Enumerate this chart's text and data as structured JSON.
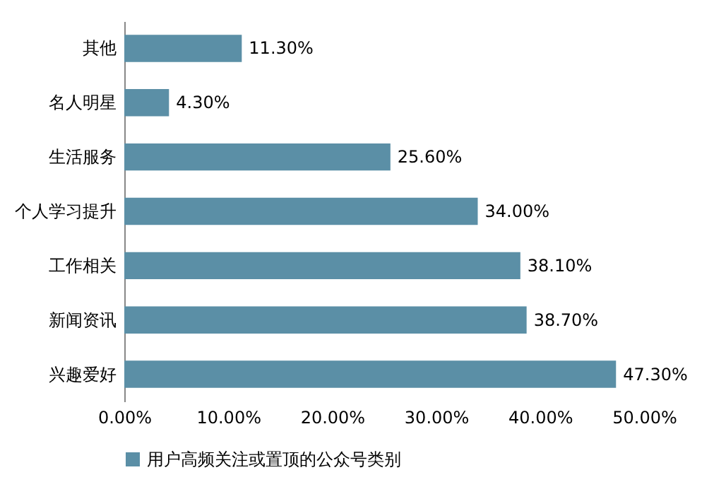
{
  "chart_data": {
    "type": "bar",
    "orientation": "horizontal",
    "categories": [
      "其他",
      "名人明星",
      "生活服务",
      "个人学习提升",
      "工作相关",
      "新闻资讯",
      "兴趣爱好"
    ],
    "series": [
      {
        "name": "用户高频关注或置顶的公众号类别",
        "color": "#5b8fa6",
        "values": [
          11.3,
          4.3,
          25.6,
          34.0,
          38.1,
          38.7,
          47.3
        ],
        "value_labels": [
          "11.30%",
          "4.30%",
          "25.60%",
          "34.00%",
          "38.10%",
          "38.70%",
          "47.30%"
        ]
      }
    ],
    "xlim": [
      0,
      50
    ],
    "xticks": [
      {
        "value": 0,
        "label": "0.00%"
      },
      {
        "value": 10,
        "label": "10.00%"
      },
      {
        "value": 20,
        "label": "20.00%"
      },
      {
        "value": 30,
        "label": "30.00%"
      },
      {
        "value": 40,
        "label": "40.00%"
      },
      {
        "value": 50,
        "label": "50.00%"
      }
    ],
    "grid": false,
    "legend": "bottom"
  }
}
